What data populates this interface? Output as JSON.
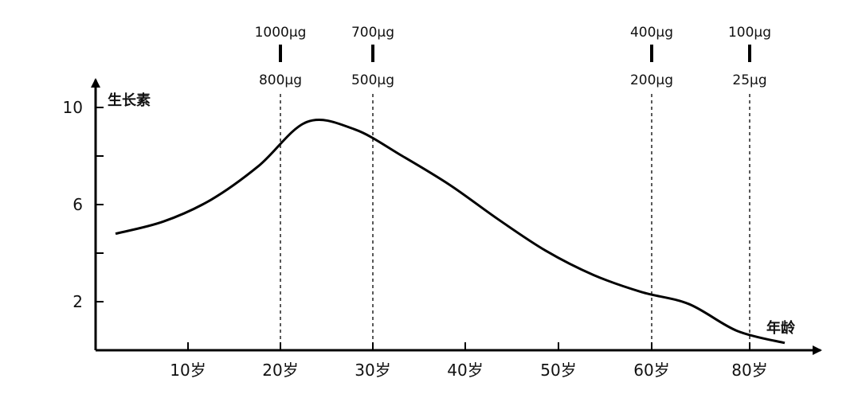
{
  "chart_data": {
    "type": "line",
    "ylabel": "生长素",
    "xlabel": "年龄",
    "yticks": [
      "2",
      "6",
      "10"
    ],
    "xticks": [
      "10岁",
      "20岁",
      "30岁",
      "40岁",
      "50岁",
      "60岁",
      "80岁"
    ],
    "ylim": [
      0,
      10
    ],
    "grid": false,
    "series": [
      {
        "x": [
          "0",
          "5",
          "10",
          "15",
          "20",
          "25",
          "30",
          "35",
          "40",
          "45",
          "50",
          "55",
          "60",
          "65",
          "70"
        ],
        "values": [
          4.8,
          5.3,
          6.2,
          7.6,
          9.4,
          9.1,
          8.0,
          6.8,
          5.4,
          4.1,
          3.1,
          2.4,
          1.9,
          0.8,
          0.3
        ]
      }
    ],
    "markers": [
      {
        "at": "20岁",
        "top": "1000μg",
        "bottom": "800μg"
      },
      {
        "at": "30岁",
        "top": "700μg",
        "bottom": "500μg"
      },
      {
        "at": "60岁",
        "top": "400μg",
        "bottom": "200μg"
      },
      {
        "at": "80岁",
        "top": "100μg",
        "bottom": "25μg"
      }
    ]
  }
}
